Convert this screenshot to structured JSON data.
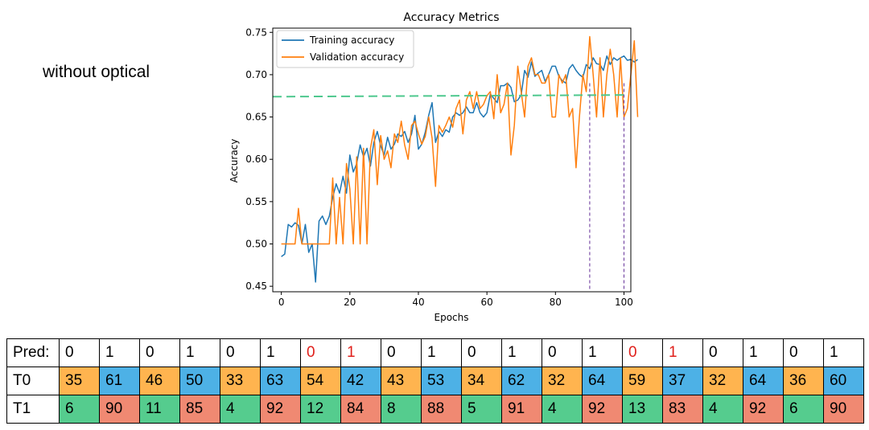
{
  "side_label": "without optical",
  "chart_data": {
    "type": "line",
    "title": "Accuracy Metrics",
    "xlabel": "Epochs",
    "ylabel": "Accuracy",
    "xlim": [
      -2.5,
      102
    ],
    "ylim": [
      0.4435,
      0.755
    ],
    "xticks": [
      0,
      20,
      40,
      60,
      80,
      100
    ],
    "yticks": [
      0.45,
      0.5,
      0.55,
      0.6,
      0.65,
      0.7,
      0.75
    ],
    "legend_position": "top-left",
    "series": [
      {
        "name": "Training accuracy",
        "color": "#1f77b4",
        "values": [
          0.485,
          0.488,
          0.523,
          0.52,
          0.525,
          0.522,
          0.5,
          0.523,
          0.49,
          0.5,
          0.455,
          0.527,
          0.533,
          0.523,
          0.533,
          0.555,
          0.571,
          0.56,
          0.58,
          0.56,
          0.605,
          0.585,
          0.595,
          0.617,
          0.603,
          0.613,
          0.592,
          0.62,
          0.633,
          0.616,
          0.605,
          0.626,
          0.612,
          0.618,
          0.63,
          0.627,
          0.633,
          0.62,
          0.63,
          0.652,
          0.612,
          0.618,
          0.632,
          0.652,
          0.667,
          0.62,
          0.633,
          0.627,
          0.635,
          0.632,
          0.65,
          0.655,
          0.652,
          0.655,
          0.662,
          0.655,
          0.655,
          0.667,
          0.655,
          0.65,
          0.655,
          0.677,
          0.672,
          0.667,
          0.687,
          0.687,
          0.69,
          0.685,
          0.668,
          0.67,
          0.676,
          0.705,
          0.697,
          0.715,
          0.698,
          0.702,
          0.705,
          0.692,
          0.7,
          0.71,
          0.71,
          0.698,
          0.693,
          0.69,
          0.707,
          0.712,
          0.705,
          0.7,
          0.697,
          0.712,
          0.707,
          0.72,
          0.713,
          0.712,
          0.705,
          0.722,
          0.712,
          0.72,
          0.717,
          0.72,
          0.722,
          0.717,
          0.718,
          0.715,
          0.718
        ]
      },
      {
        "name": "Validation accuracy",
        "color": "#ff7f0e",
        "values": [
          0.5,
          0.5,
          0.5,
          0.5,
          0.5,
          0.542,
          0.5,
          0.5,
          0.5,
          0.5,
          0.5,
          0.5,
          0.5,
          0.5,
          0.5,
          0.578,
          0.5,
          0.555,
          0.5,
          0.595,
          0.565,
          0.5,
          0.603,
          0.5,
          0.613,
          0.5,
          0.613,
          0.635,
          0.57,
          0.628,
          0.6,
          0.61,
          0.59,
          0.63,
          0.62,
          0.645,
          0.617,
          0.6,
          0.64,
          0.645,
          0.63,
          0.618,
          0.627,
          0.65,
          0.625,
          0.568,
          0.64,
          0.632,
          0.64,
          0.65,
          0.638,
          0.66,
          0.67,
          0.63,
          0.67,
          0.68,
          0.66,
          0.68,
          0.66,
          0.665,
          0.675,
          0.68,
          0.648,
          0.7,
          0.655,
          0.665,
          0.69,
          0.605,
          0.64,
          0.71,
          0.68,
          0.65,
          0.71,
          0.72,
          0.7,
          0.7,
          0.69,
          0.69,
          0.7,
          0.65,
          0.65,
          0.7,
          0.69,
          0.7,
          0.65,
          0.66,
          0.59,
          0.65,
          0.7,
          0.68,
          0.745,
          0.7,
          0.65,
          0.72,
          0.65,
          0.7,
          0.73,
          0.7,
          0.65,
          0.72,
          0.65,
          0.66,
          0.7,
          0.74,
          0.65
        ]
      }
    ],
    "threshold_line": {
      "color": "#4ec88e",
      "y_start": 0.674,
      "y_end": 0.676
    },
    "marker_lines": {
      "color": "#7040a0",
      "x": [
        90,
        100
      ]
    }
  },
  "table": {
    "rows": [
      {
        "label": "Pred:",
        "cells": [
          "0",
          "1",
          "0",
          "1",
          "0",
          "1",
          "0",
          "1",
          "0",
          "1",
          "0",
          "1",
          "0",
          "1",
          "0",
          "1",
          "0",
          "1",
          "0",
          "1"
        ]
      },
      {
        "label": "T0",
        "cells": [
          "35",
          "61",
          "46",
          "50",
          "33",
          "63",
          "54",
          "42",
          "43",
          "53",
          "34",
          "62",
          "32",
          "64",
          "59",
          "37",
          "32",
          "64",
          "36",
          "60"
        ]
      },
      {
        "label": "T1",
        "cells": [
          "6",
          "90",
          "11",
          "85",
          "4",
          "92",
          "12",
          "84",
          "8",
          "88",
          "5",
          "91",
          "4",
          "92",
          "13",
          "83",
          "4",
          "92",
          "6",
          "90"
        ]
      }
    ],
    "pred_text_colors": [
      "#000000",
      "#000000",
      "#000000",
      "#000000",
      "#000000",
      "#000000",
      "#e0201b",
      "#e0201b",
      "#000000",
      "#000000",
      "#000000",
      "#000000",
      "#000000",
      "#000000",
      "#e0201b",
      "#e0201b",
      "#000000",
      "#000000",
      "#000000",
      "#000000"
    ],
    "t0_fill_colors": [
      "#ffb44f",
      "#4db1e6",
      "#ffb44f",
      "#4db1e6",
      "#ffb44f",
      "#4db1e6",
      "#ffb44f",
      "#4db1e6",
      "#ffb44f",
      "#4db1e6",
      "#ffb44f",
      "#4db1e6",
      "#ffb44f",
      "#4db1e6",
      "#ffb44f",
      "#4db1e6",
      "#ffb44f",
      "#4db1e6",
      "#ffb44f",
      "#4db1e6"
    ],
    "t1_fill_colors": [
      "#55cc8e",
      "#f08972",
      "#55cc8e",
      "#f08972",
      "#55cc8e",
      "#f08972",
      "#55cc8e",
      "#f08972",
      "#55cc8e",
      "#f08972",
      "#55cc8e",
      "#f08972",
      "#55cc8e",
      "#f08972",
      "#55cc8e",
      "#f08972",
      "#55cc8e",
      "#f08972",
      "#55cc8e",
      "#f08972"
    ]
  }
}
